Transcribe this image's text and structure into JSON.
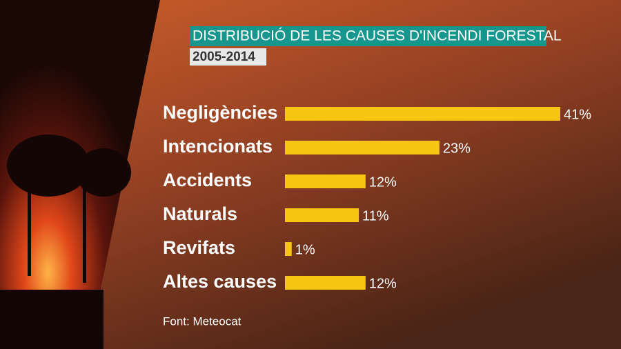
{
  "chart_data": {
    "type": "bar",
    "orientation": "horizontal",
    "title": "DISTRIBUCIÓ DE LES CAUSES D'INCENDI FORESTAL",
    "subtitle": "2005-2014",
    "source": "Font: Meteocat",
    "categories": [
      "Negligències",
      "Intencionats",
      "Accidents",
      "Naturals",
      "Revifats",
      "Altes causes"
    ],
    "values": [
      41,
      23,
      12,
      11,
      1,
      12
    ],
    "value_labels": [
      "41%",
      "23%",
      "12%",
      "11%",
      "1%",
      "12%"
    ],
    "color": "#f7c614"
  }
}
